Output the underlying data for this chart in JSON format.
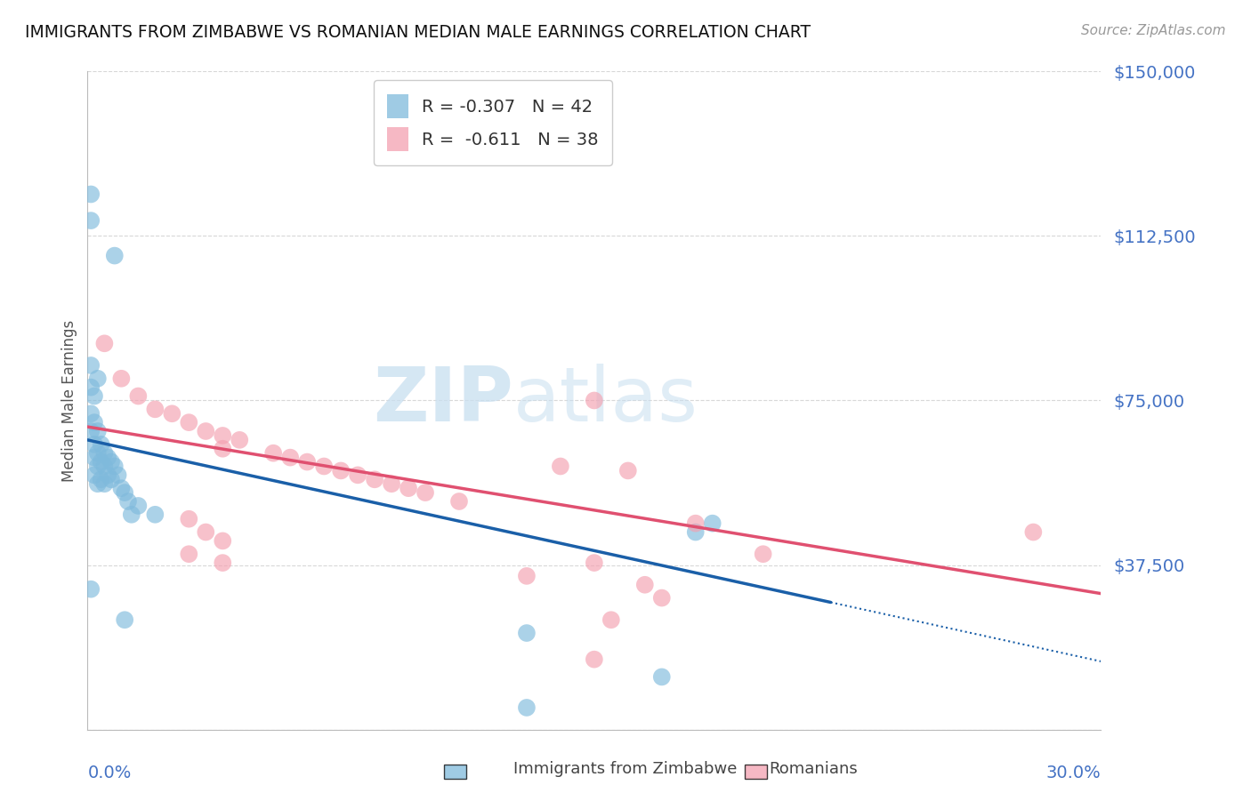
{
  "title": "IMMIGRANTS FROM ZIMBABWE VS ROMANIAN MEDIAN MALE EARNINGS CORRELATION CHART",
  "source": "Source: ZipAtlas.com",
  "ylabel": "Median Male Earnings",
  "yticks": [
    0,
    37500,
    75000,
    112500,
    150000
  ],
  "ytick_labels": [
    "",
    "$37,500",
    "$75,000",
    "$112,500",
    "$150,000"
  ],
  "xlim": [
    0.0,
    0.3
  ],
  "ylim": [
    0,
    150000
  ],
  "zimbabwe_color": "#7fbadc",
  "romanian_color": "#f4a0b0",
  "zimbabwe_scatter": [
    [
      0.001,
      122000
    ],
    [
      0.001,
      116000
    ],
    [
      0.008,
      108000
    ],
    [
      0.001,
      83000
    ],
    [
      0.003,
      80000
    ],
    [
      0.001,
      78000
    ],
    [
      0.002,
      76000
    ],
    [
      0.001,
      72000
    ],
    [
      0.002,
      70000
    ],
    [
      0.001,
      68000
    ],
    [
      0.003,
      68000
    ],
    [
      0.002,
      65000
    ],
    [
      0.004,
      65000
    ],
    [
      0.003,
      63000
    ],
    [
      0.005,
      63000
    ],
    [
      0.002,
      62000
    ],
    [
      0.006,
      62000
    ],
    [
      0.004,
      61000
    ],
    [
      0.007,
      61000
    ],
    [
      0.003,
      60000
    ],
    [
      0.005,
      60000
    ],
    [
      0.008,
      60000
    ],
    [
      0.002,
      58000
    ],
    [
      0.006,
      58000
    ],
    [
      0.009,
      58000
    ],
    [
      0.004,
      57000
    ],
    [
      0.007,
      57000
    ],
    [
      0.003,
      56000
    ],
    [
      0.005,
      56000
    ],
    [
      0.01,
      55000
    ],
    [
      0.011,
      54000
    ],
    [
      0.012,
      52000
    ],
    [
      0.015,
      51000
    ],
    [
      0.013,
      49000
    ],
    [
      0.02,
      49000
    ],
    [
      0.185,
      47000
    ],
    [
      0.18,
      45000
    ],
    [
      0.001,
      32000
    ],
    [
      0.011,
      25000
    ],
    [
      0.13,
      22000
    ],
    [
      0.17,
      12000
    ],
    [
      0.13,
      5000
    ]
  ],
  "romanian_scatter": [
    [
      0.005,
      88000
    ],
    [
      0.01,
      80000
    ],
    [
      0.015,
      76000
    ],
    [
      0.02,
      73000
    ],
    [
      0.025,
      72000
    ],
    [
      0.03,
      70000
    ],
    [
      0.035,
      68000
    ],
    [
      0.04,
      67000
    ],
    [
      0.045,
      66000
    ],
    [
      0.04,
      64000
    ],
    [
      0.055,
      63000
    ],
    [
      0.06,
      62000
    ],
    [
      0.065,
      61000
    ],
    [
      0.07,
      60000
    ],
    [
      0.075,
      59000
    ],
    [
      0.08,
      58000
    ],
    [
      0.085,
      57000
    ],
    [
      0.09,
      56000
    ],
    [
      0.095,
      55000
    ],
    [
      0.14,
      60000
    ],
    [
      0.15,
      75000
    ],
    [
      0.16,
      59000
    ],
    [
      0.1,
      54000
    ],
    [
      0.11,
      52000
    ],
    [
      0.03,
      48000
    ],
    [
      0.035,
      45000
    ],
    [
      0.04,
      43000
    ],
    [
      0.18,
      47000
    ],
    [
      0.2,
      40000
    ],
    [
      0.28,
      45000
    ],
    [
      0.03,
      40000
    ],
    [
      0.04,
      38000
    ],
    [
      0.15,
      38000
    ],
    [
      0.13,
      35000
    ],
    [
      0.165,
      33000
    ],
    [
      0.17,
      30000
    ],
    [
      0.155,
      25000
    ],
    [
      0.15,
      16000
    ]
  ],
  "zim_trend_x0": 0.0,
  "zim_trend_y0": 66000,
  "zim_trend_x1": 0.22,
  "zim_trend_y1": 29000,
  "zim_trend_ext_x": 0.3,
  "rom_trend_x0": 0.0,
  "rom_trend_y0": 69000,
  "rom_trend_x1": 0.3,
  "rom_trend_y1": 31000,
  "watermark_zip": "ZIP",
  "watermark_atlas": "atlas",
  "background_color": "#ffffff",
  "grid_color": "#d8d8d8",
  "title_color": "#111111",
  "axis_label_color": "#4472c4",
  "ytick_color": "#4472c4",
  "legend_label1": "R = -0.307   N = 42",
  "legend_label2": "R =  -0.611   N = 38",
  "bottom_label1": "Immigrants from Zimbabwe",
  "bottom_label2": "Romanians"
}
